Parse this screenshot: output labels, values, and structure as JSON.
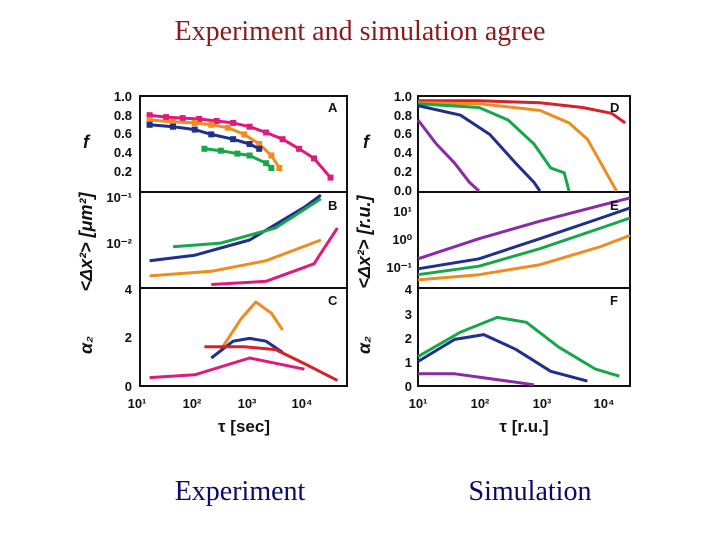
{
  "slide": {
    "title": "Experiment and simulation agree",
    "caption_left": "Experiment",
    "caption_right": "Simulation"
  },
  "axes": {
    "x_left_label": "τ [sec]",
    "x_right_label": "τ [r.u.]",
    "f_label": "f",
    "msd_left_label": "<Δx²> [μm²]",
    "msd_right_label": "<Δx²> [r.u.]",
    "alpha_label": "α₂",
    "x_ticks_left": [
      "10¹",
      "10²",
      "10³",
      "10⁴"
    ],
    "x_ticks_right": [
      "10¹",
      "10²",
      "10³",
      "10⁴"
    ],
    "f_ticks": [
      "1.0",
      "0.8",
      "0.6",
      "0.4",
      "0.2",
      "0.0"
    ],
    "msd_ticks_left": [
      "10⁻¹",
      "10⁻²",
      "4"
    ],
    "msd_ticks_right": [
      "10¹",
      "10⁰",
      "10⁻¹",
      "4"
    ],
    "alpha_ticks_left": [
      "2",
      "0"
    ],
    "alpha_ticks_right": [
      "3",
      "2",
      "1",
      "0"
    ]
  },
  "colors": {
    "magenta": "#e0197d",
    "orange": "#f08c1e",
    "green": "#17a74a",
    "navy": "#1f2f8f",
    "purple": "#8a2aa8",
    "red": "#d6202a"
  },
  "chart_data": [
    {
      "panel": "A",
      "type": "scatter",
      "xscale": "log",
      "xlim": [
        10,
        60000
      ],
      "ylim": [
        0,
        1
      ],
      "series": [
        {
          "color": "magenta",
          "x": [
            15,
            30,
            60,
            120,
            250,
            500,
            1000,
            2000,
            4000,
            8000,
            15000,
            30000
          ],
          "y": [
            0.8,
            0.78,
            0.77,
            0.76,
            0.74,
            0.72,
            0.68,
            0.62,
            0.55,
            0.45,
            0.35,
            0.15
          ]
        },
        {
          "color": "orange",
          "x": [
            15,
            40,
            100,
            200,
            400,
            800,
            1500,
            2500,
            3500
          ],
          "y": [
            0.75,
            0.73,
            0.72,
            0.7,
            0.67,
            0.6,
            0.5,
            0.38,
            0.25
          ]
        },
        {
          "color": "navy",
          "x": [
            15,
            40,
            100,
            200,
            500,
            1000,
            1500
          ],
          "y": [
            0.7,
            0.68,
            0.65,
            0.6,
            0.55,
            0.5,
            0.45
          ]
        },
        {
          "color": "green",
          "x": [
            150,
            300,
            600,
            1000,
            2000,
            2500
          ],
          "y": [
            0.45,
            0.43,
            0.4,
            0.38,
            0.3,
            0.25
          ]
        }
      ]
    },
    {
      "panel": "B",
      "type": "line",
      "xscale": "log",
      "xlim": [
        10,
        60000
      ],
      "yscale": "log",
      "ylim": [
        0.004,
        0.1
      ],
      "series": [
        {
          "color": "navy",
          "x": [
            15,
            100,
            1000,
            10000,
            20000
          ],
          "y": [
            0.01,
            0.012,
            0.02,
            0.06,
            0.09
          ]
        },
        {
          "color": "green",
          "x": [
            40,
            300,
            3000,
            20000
          ],
          "y": [
            0.016,
            0.018,
            0.03,
            0.08
          ]
        },
        {
          "color": "orange",
          "x": [
            15,
            200,
            2000,
            20000
          ],
          "y": [
            0.006,
            0.007,
            0.01,
            0.02
          ]
        },
        {
          "color": "magenta",
          "x": [
            200,
            2000,
            15000,
            40000
          ],
          "y": [
            0.0045,
            0.005,
            0.009,
            0.03
          ]
        }
      ]
    },
    {
      "panel": "C",
      "type": "line",
      "xscale": "log",
      "xlim": [
        10,
        60000
      ],
      "ylim": [
        0,
        3.5
      ],
      "series": [
        {
          "color": "orange",
          "x": [
            300,
            700,
            1300,
            2500,
            4000
          ],
          "y": [
            1.3,
            2.4,
            3.0,
            2.6,
            2.0
          ]
        },
        {
          "color": "navy",
          "x": [
            200,
            500,
            1000,
            2000,
            4000
          ],
          "y": [
            1.0,
            1.6,
            1.7,
            1.6,
            1.2
          ]
        },
        {
          "color": "red",
          "x": [
            150,
            800,
            3000,
            10000,
            40000
          ],
          "y": [
            1.4,
            1.4,
            1.3,
            0.8,
            0.2
          ]
        },
        {
          "color": "magenta",
          "x": [
            15,
            100,
            1000,
            10000
          ],
          "y": [
            0.3,
            0.4,
            1.0,
            0.6
          ]
        }
      ]
    },
    {
      "panel": "D",
      "type": "line",
      "xscale": "log",
      "xlim": [
        10,
        30000
      ],
      "ylim": [
        0,
        1
      ],
      "series": [
        {
          "color": "red",
          "x": [
            10,
            100,
            1000,
            5000,
            15000,
            25000
          ],
          "y": [
            0.95,
            0.95,
            0.93,
            0.88,
            0.82,
            0.72
          ]
        },
        {
          "color": "orange",
          "x": [
            10,
            100,
            1000,
            3000,
            6000,
            10000,
            18000
          ],
          "y": [
            0.93,
            0.92,
            0.85,
            0.72,
            0.55,
            0.3,
            0.0
          ]
        },
        {
          "color": "green",
          "x": [
            10,
            100,
            300,
            800,
            1500,
            2500,
            3000
          ],
          "y": [
            0.92,
            0.88,
            0.75,
            0.5,
            0.25,
            0.2,
            0.0
          ]
        },
        {
          "color": "navy",
          "x": [
            10,
            50,
            150,
            400,
            800,
            1000
          ],
          "y": [
            0.9,
            0.8,
            0.6,
            0.3,
            0.1,
            0.0
          ]
        },
        {
          "color": "purple",
          "x": [
            10,
            20,
            40,
            70,
            100
          ],
          "y": [
            0.75,
            0.5,
            0.3,
            0.1,
            0.0
          ]
        }
      ]
    },
    {
      "panel": "E",
      "type": "line",
      "xscale": "log",
      "xlim": [
        10,
        30000
      ],
      "yscale": "log",
      "ylim": [
        0.04,
        30
      ],
      "series": [
        {
          "color": "purple",
          "x": [
            10,
            100,
            1000,
            10000,
            30000
          ],
          "y": [
            0.3,
            1.2,
            4,
            12,
            20
          ]
        },
        {
          "color": "navy",
          "x": [
            10,
            100,
            1000,
            10000,
            30000
          ],
          "y": [
            0.15,
            0.3,
            1.2,
            5,
            10
          ]
        },
        {
          "color": "green",
          "x": [
            10,
            100,
            1000,
            10000,
            30000
          ],
          "y": [
            0.1,
            0.18,
            0.6,
            2.5,
            5
          ]
        },
        {
          "color": "orange",
          "x": [
            10,
            100,
            1000,
            10000,
            30000
          ],
          "y": [
            0.07,
            0.1,
            0.2,
            0.7,
            1.5
          ]
        }
      ]
    },
    {
      "panel": "F",
      "type": "line",
      "xscale": "log",
      "xlim": [
        10,
        30000
      ],
      "ylim": [
        0,
        4
      ],
      "series": [
        {
          "color": "green",
          "x": [
            10,
            50,
            200,
            600,
            2000,
            8000,
            20000
          ],
          "y": [
            1.2,
            2.2,
            2.8,
            2.6,
            1.6,
            0.7,
            0.4
          ]
        },
        {
          "color": "navy",
          "x": [
            10,
            40,
            120,
            400,
            1500,
            6000
          ],
          "y": [
            1.0,
            1.9,
            2.1,
            1.5,
            0.6,
            0.2
          ]
        },
        {
          "color": "purple",
          "x": [
            10,
            40,
            150,
            800
          ],
          "y": [
            0.5,
            0.5,
            0.3,
            0.05
          ]
        }
      ]
    }
  ]
}
